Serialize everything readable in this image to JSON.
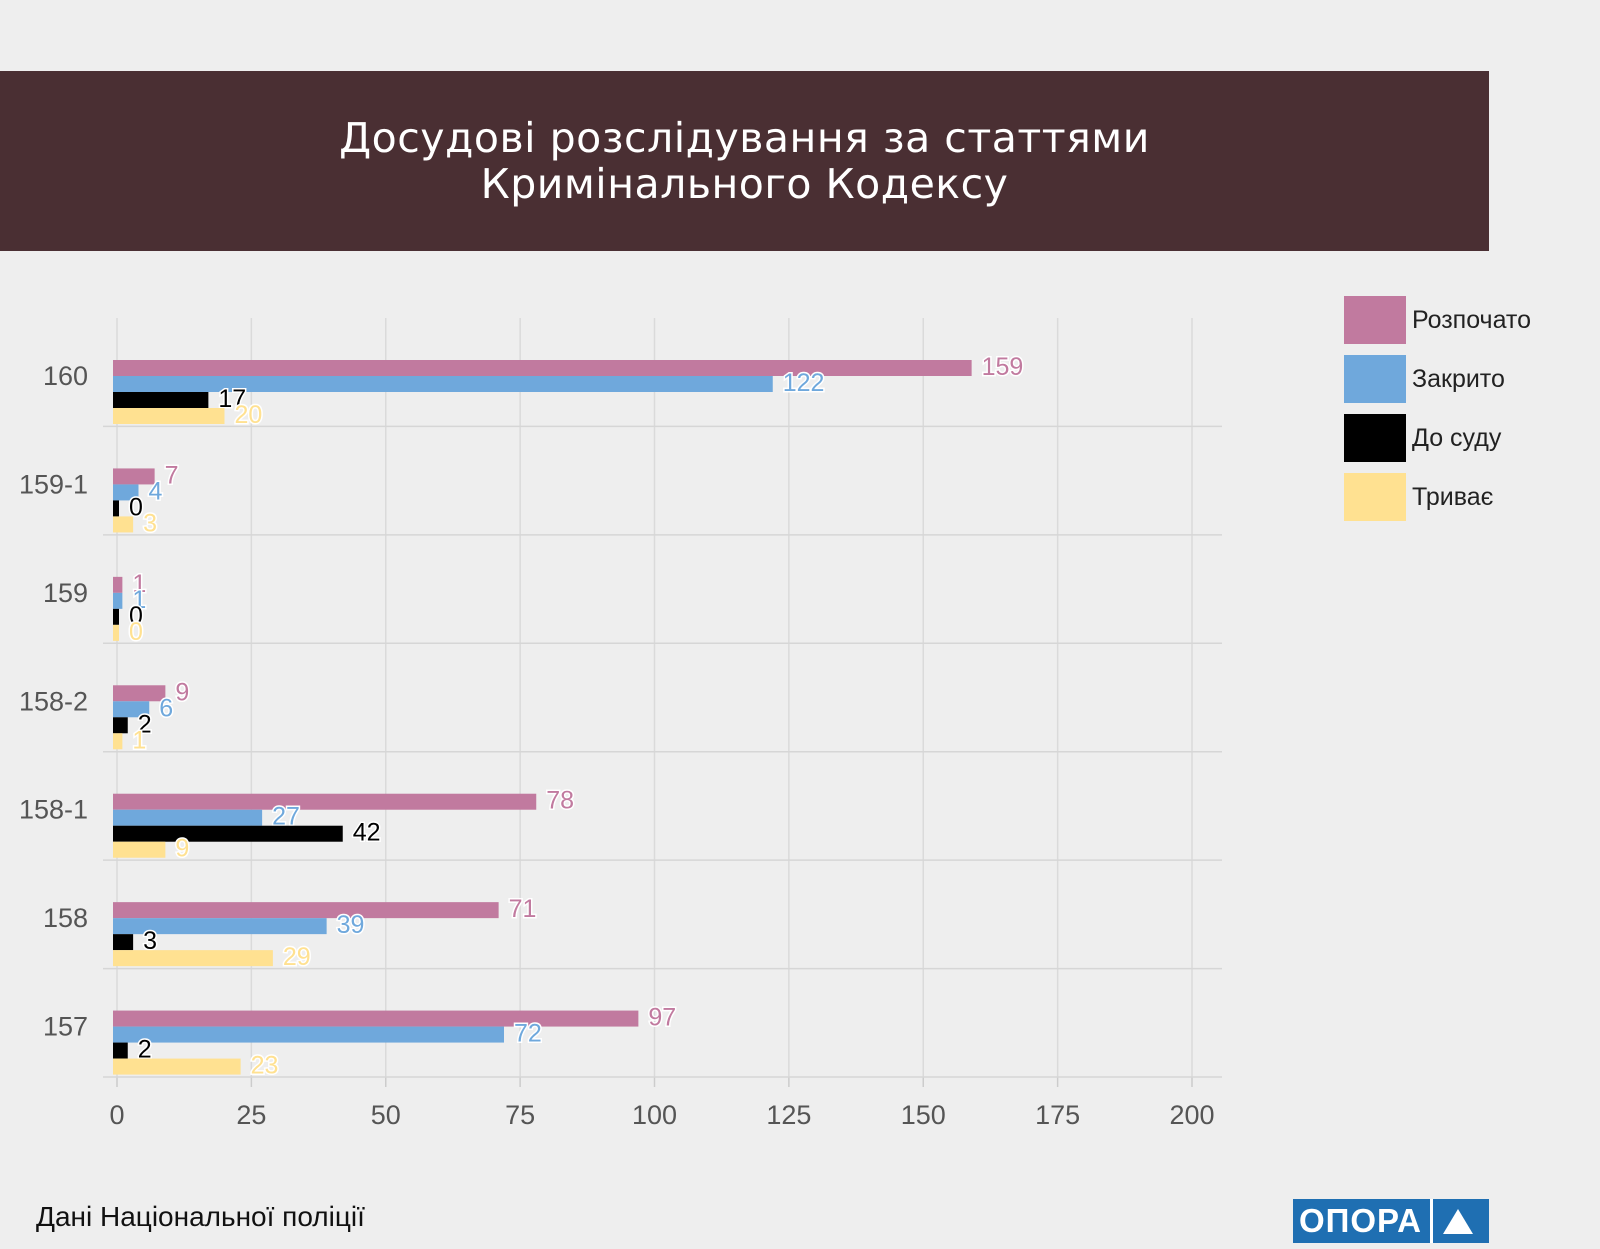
{
  "header": {
    "title_line1": "Досудові розслідування за статтями",
    "title_line2": "Кримінального Кодексу"
  },
  "footer": {
    "source": "Дані Національної поліції",
    "logo_text": "ОПОРА"
  },
  "colors": {
    "header_bg": "#4a2f33",
    "started": "#c17a9f",
    "closed": "#6fa8dc",
    "court": "#000000",
    "ongoing": "#ffe191",
    "logo": "#1f6fb2"
  },
  "chart_data": {
    "type": "bar",
    "orientation": "horizontal",
    "title": "Досудові розслідування за статтями Кримінального Кодексу",
    "categories": [
      "160",
      "159-1",
      "159",
      "158-2",
      "158-1",
      "158",
      "157"
    ],
    "series": [
      {
        "name": "Розпочато",
        "color": "#c17a9f",
        "label_color": "#c17a9f",
        "values": [
          159,
          7,
          1,
          9,
          78,
          71,
          97
        ]
      },
      {
        "name": "Закрито",
        "color": "#6fa8dc",
        "label_color": "#6fa8dc",
        "values": [
          122,
          4,
          1,
          6,
          27,
          39,
          72
        ]
      },
      {
        "name": "До суду",
        "color": "#000000",
        "label_color": "#000000",
        "values": [
          17,
          0,
          0,
          2,
          42,
          3,
          2
        ]
      },
      {
        "name": "Триває",
        "color": "#ffe191",
        "label_color": "#ffe191",
        "values": [
          20,
          3,
          0,
          1,
          9,
          29,
          23
        ]
      }
    ],
    "xlim": [
      0,
      200
    ],
    "xticks": [
      0,
      25,
      50,
      75,
      100,
      125,
      150,
      175,
      200
    ],
    "xlabel": "",
    "ylabel": "",
    "grid": true,
    "legend_position": "right"
  }
}
